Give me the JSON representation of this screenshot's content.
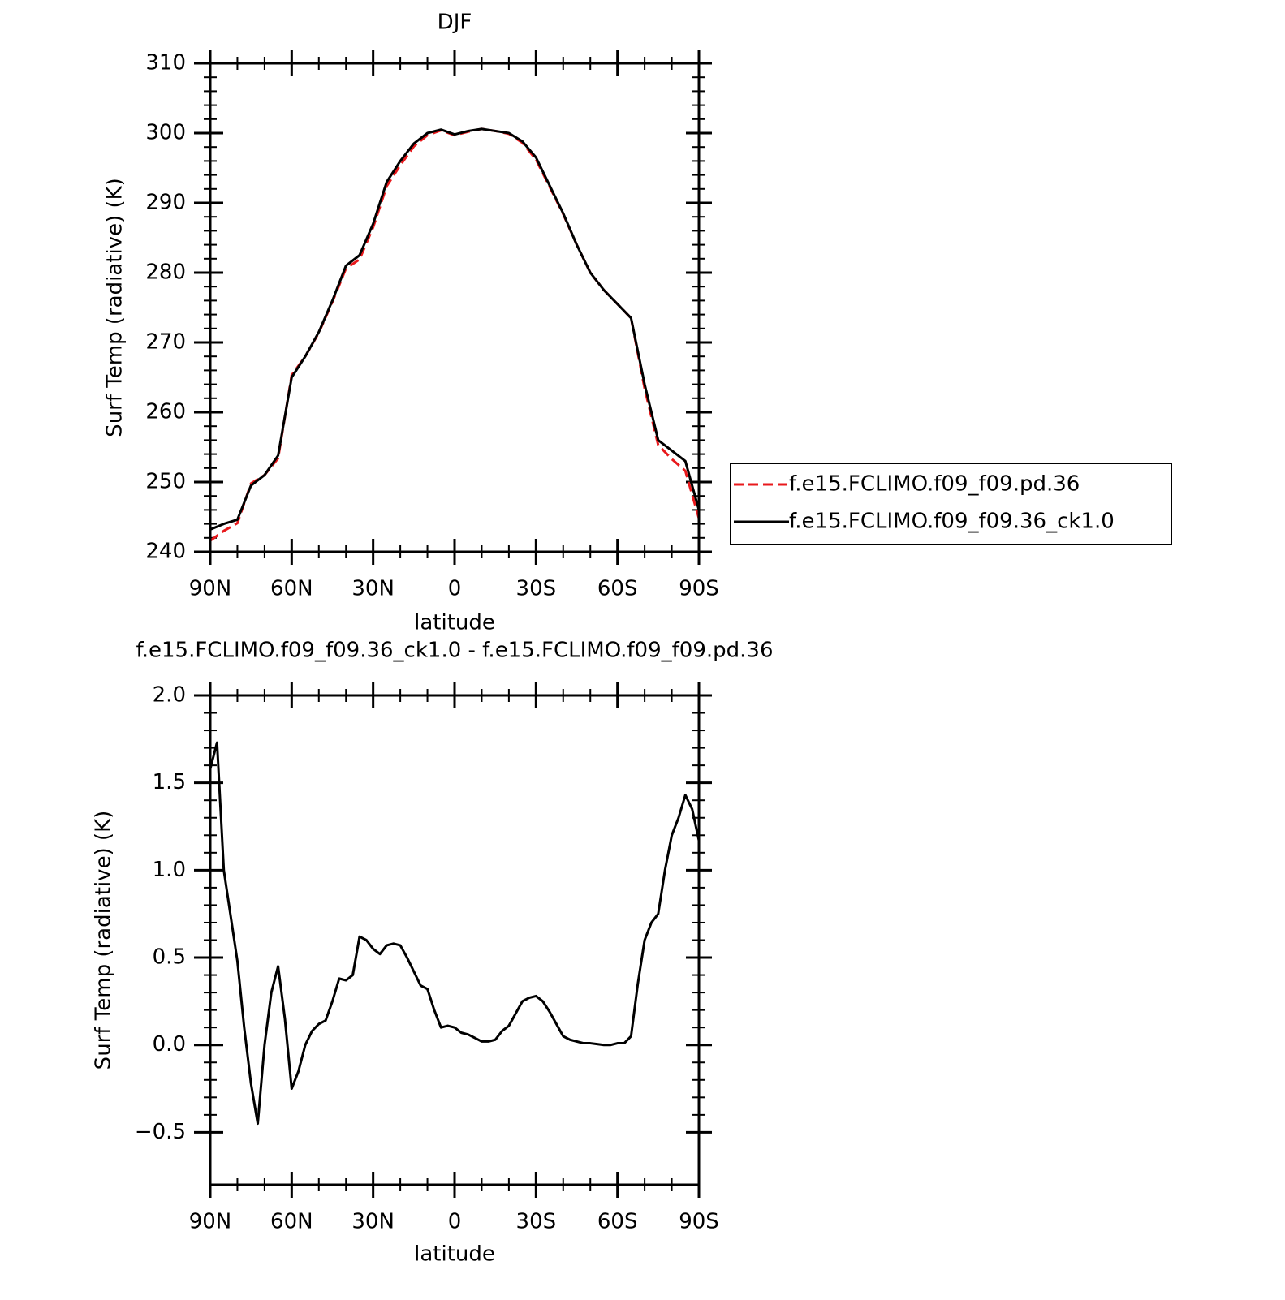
{
  "chart_data": [
    {
      "type": "line",
      "title": "DJF",
      "ylabel": "Surf Temp (radiative) (K)",
      "xlabel": "latitude",
      "x": [
        90,
        85,
        80,
        75,
        70,
        65,
        60,
        55,
        50,
        45,
        40,
        35,
        30,
        25,
        20,
        15,
        10,
        5,
        0,
        -5,
        -10,
        -15,
        -20,
        -25,
        -30,
        -35,
        -40,
        -45,
        -50,
        -55,
        -60,
        -65,
        -70,
        -75,
        -80,
        -85,
        -90
      ],
      "series": [
        {
          "name": "f.e15.FCLIMO.f09_f09.pd.36",
          "color": "#e8191c",
          "dash": "dashed",
          "values": [
            241.6,
            243.0,
            244.1,
            249.8,
            251,
            253.4,
            265.3,
            268,
            271.4,
            275.8,
            280.6,
            281.9,
            286.5,
            292.4,
            295.4,
            298.1,
            299.7,
            300.4,
            299.7,
            300.2,
            300.6,
            300.3,
            299.9,
            298.6,
            296.2,
            292.3,
            288.4,
            284,
            280,
            277.5,
            275.5,
            273.5,
            263.4,
            255.3,
            253.3,
            251.6,
            244.8
          ]
        },
        {
          "name": "f.e15.FCLIMO.f09_f09.36_ck1.0",
          "color": "#000000",
          "dash": "solid",
          "values": [
            243.2,
            244.0,
            244.6,
            249.5,
            251,
            253.8,
            265,
            268,
            271.5,
            276,
            281,
            282.5,
            287,
            293,
            296,
            298.5,
            300,
            300.5,
            299.8,
            300.3,
            300.6,
            300.3,
            300,
            298.8,
            296.5,
            292.5,
            288.5,
            284,
            280,
            277.5,
            275.5,
            273.5,
            264,
            256,
            254.5,
            253,
            246
          ]
        }
      ],
      "xlim": [
        90,
        -90
      ],
      "xticks": [
        {
          "value": 90,
          "label": "90N"
        },
        {
          "value": 60,
          "label": "60N"
        },
        {
          "value": 30,
          "label": "30N"
        },
        0,
        {
          "value": -30,
          "label": "30S"
        },
        {
          "value": -60,
          "label": "60S"
        },
        {
          "value": -90,
          "label": "90S"
        }
      ],
      "ylim": [
        240,
        310
      ],
      "yticks": [
        240,
        250,
        260,
        270,
        280,
        290,
        300,
        310
      ],
      "legend": "right"
    },
    {
      "type": "line",
      "title": "f.e15.FCLIMO.f09_f09.36_ck1.0 - f.e15.FCLIMO.f09_f09.pd.36",
      "ylabel": "Surf Temp (radiative) (K)",
      "xlabel": "latitude",
      "x": [
        90,
        87.5,
        85,
        82.5,
        80,
        77.5,
        75,
        72.5,
        70,
        67.5,
        65,
        62.5,
        60,
        57.5,
        55,
        52.5,
        50,
        47.5,
        45,
        42.5,
        40,
        37.5,
        35,
        32.5,
        30,
        27.5,
        25,
        22.5,
        20,
        17.5,
        15,
        12.5,
        10,
        7.5,
        5,
        2.5,
        0,
        -2.5,
        -5,
        -7.5,
        -10,
        -12.5,
        -15,
        -17.5,
        -20,
        -22.5,
        -25,
        -27.5,
        -30,
        -32.5,
        -35,
        -37.5,
        -40,
        -42.5,
        -45,
        -47.5,
        -50,
        -52.5,
        -55,
        -57.5,
        -60,
        -62.5,
        -65,
        -67.5,
        -70,
        -72.5,
        -75,
        -77.5,
        -80,
        -82.5,
        -85,
        -87.5,
        -90
      ],
      "series": [
        {
          "name": null,
          "color": "#000000",
          "dash": "solid",
          "values": [
            1.58,
            1.73,
            1.0,
            0.74,
            0.48,
            0.1,
            -0.22,
            -0.45,
            0.0,
            0.3,
            0.45,
            0.15,
            -0.25,
            -0.15,
            0.0,
            0.08,
            0.12,
            0.14,
            0.25,
            0.38,
            0.37,
            0.4,
            0.62,
            0.6,
            0.55,
            0.52,
            0.57,
            0.58,
            0.57,
            0.5,
            0.42,
            0.34,
            0.32,
            0.2,
            0.1,
            0.11,
            0.1,
            0.07,
            0.06,
            0.04,
            0.02,
            0.02,
            0.03,
            0.08,
            0.11,
            0.18,
            0.25,
            0.27,
            0.28,
            0.25,
            0.19,
            0.12,
            0.05,
            0.03,
            0.02,
            0.01,
            0.01,
            0.005,
            0.0,
            0.0,
            0.01,
            0.01,
            0.05,
            0.35,
            0.6,
            0.7,
            0.75,
            1.0,
            1.2,
            1.3,
            1.43,
            1.35,
            1.17
          ]
        }
      ],
      "xlim": [
        90,
        -90
      ],
      "xticks": [
        {
          "value": 90,
          "label": "90N"
        },
        {
          "value": 60,
          "label": "60N"
        },
        {
          "value": 30,
          "label": "30N"
        },
        0,
        {
          "value": -30,
          "label": "30S"
        },
        {
          "value": -60,
          "label": "60S"
        },
        {
          "value": -90,
          "label": "90S"
        }
      ],
      "ylim": [
        -0.8,
        2.0
      ],
      "yticks": [
        {
          "value": -0.5,
          "label": "−0.5"
        },
        {
          "value": 0,
          "label": "0.0"
        },
        {
          "value": 0.5,
          "label": "0.5"
        },
        {
          "value": 1,
          "label": "1.0"
        },
        {
          "value": 1.5,
          "label": "1.5"
        },
        {
          "value": 2,
          "label": "2.0"
        }
      ]
    }
  ]
}
